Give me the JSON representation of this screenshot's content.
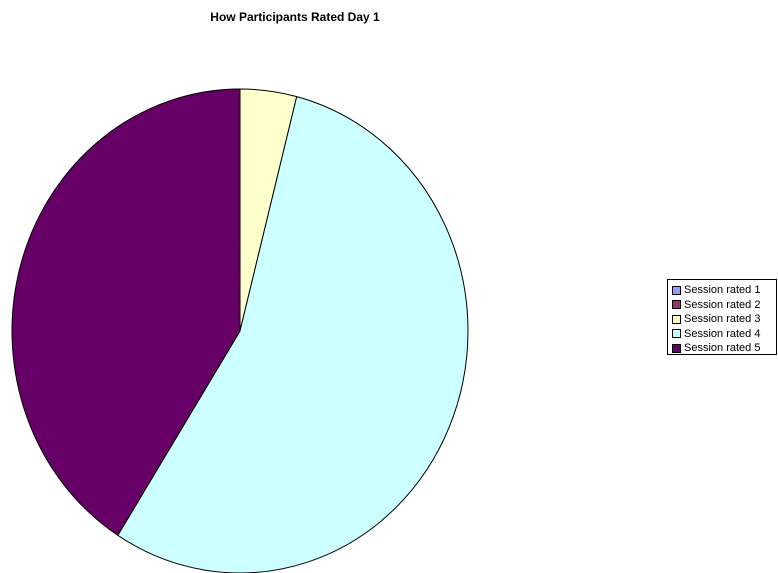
{
  "chart_data": {
    "type": "pie",
    "title": "How Participants Rated Day 1",
    "categories": [
      "Session rated 1",
      "Session rated 2",
      "Session rated 3",
      "Session rated 4",
      "Session rated 5"
    ],
    "values": [
      0,
      0,
      4,
      55,
      41
    ],
    "colors": [
      "#9999FF",
      "#993366",
      "#FFFFCC",
      "#CCFFFF",
      "#660066"
    ],
    "legend": "right",
    "start_angle": "12 o'clock, clockwise"
  }
}
